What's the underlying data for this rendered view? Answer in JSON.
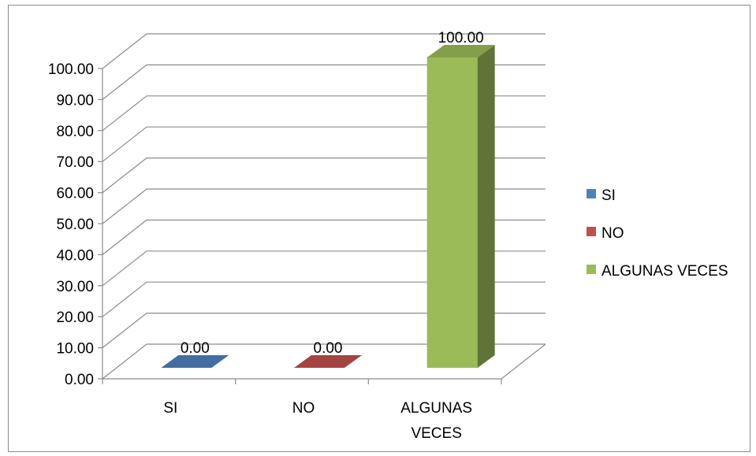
{
  "chart_data": {
    "type": "bar",
    "style": "3d-column",
    "categories": [
      "SI",
      "NO",
      "ALGUNAS VECES"
    ],
    "category_lines": [
      [
        "SI"
      ],
      [
        "NO"
      ],
      [
        "ALGUNAS",
        "VECES"
      ]
    ],
    "values": [
      0.0,
      0.0,
      100.0
    ],
    "value_labels": [
      "0.00",
      "0.00",
      "100.00"
    ],
    "series_colors": [
      "#4f81bd",
      "#c0504d",
      "#9bbb59"
    ],
    "ylim": [
      0,
      100
    ],
    "yticks": [
      0,
      10,
      20,
      30,
      40,
      50,
      60,
      70,
      80,
      90,
      100
    ],
    "ytick_labels": [
      "0.00",
      "10.00",
      "20.00",
      "30.00",
      "40.00",
      "50.00",
      "60.00",
      "70.00",
      "80.00",
      "90.00",
      "100.00"
    ],
    "grid": true,
    "legend_position": "right",
    "legend": [
      {
        "label": "SI",
        "color": "#4f81bd"
      },
      {
        "label": "NO",
        "color": "#c0504d"
      },
      {
        "label": "ALGUNAS VECES",
        "color": "#9bbb59"
      }
    ],
    "title": "",
    "xlabel": "",
    "ylabel": ""
  }
}
